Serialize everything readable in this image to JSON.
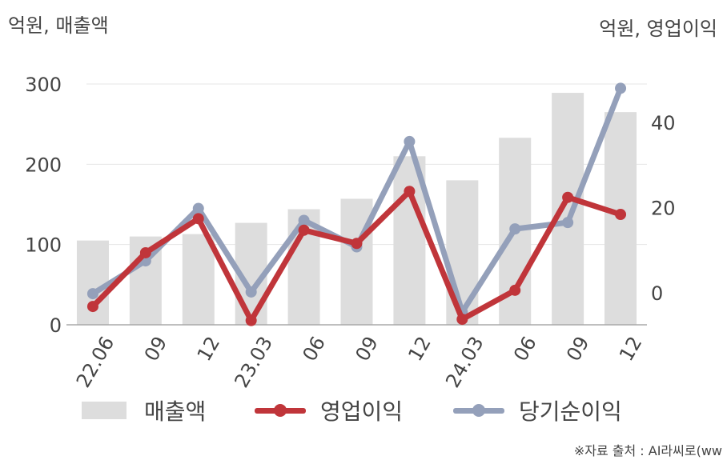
{
  "header": {
    "left_unit": "억원, 매출액",
    "right_unit": "억원, 영업이익"
  },
  "colors": {
    "revenue": "#dddddd",
    "operating_profit": "#c0353a",
    "net_profit": "#94a0ba",
    "gridline": "#e6e6e6",
    "axis": "#aaaaaa",
    "text": "#444444"
  },
  "chart_data": {
    "type": "bar",
    "categories": [
      "22.06",
      "09",
      "12",
      "23.03",
      "06",
      "09",
      "12",
      "24.03",
      "06",
      "09",
      "12"
    ],
    "left_axis": {
      "ylim": [
        0,
        300
      ],
      "ticks": [
        "0",
        "100",
        "200",
        "300"
      ]
    },
    "right_axis": {
      "ylim": [
        -7.5,
        49
      ],
      "ticks": [
        "0",
        "20",
        "40"
      ]
    },
    "series": [
      {
        "name": "매출액",
        "type": "bar",
        "axis": "left",
        "values": [
          105,
          110,
          113,
          127,
          144,
          157,
          210,
          180,
          233,
          289,
          265
        ]
      },
      {
        "name": "영업이익",
        "type": "line",
        "axis": "right",
        "values": [
          -3.2,
          9.4,
          17.4,
          -6.5,
          14.7,
          11.6,
          23.8,
          -6.2,
          0.6,
          22.4,
          18.4
        ]
      },
      {
        "name": "당기순이익",
        "type": "line",
        "axis": "right",
        "values": [
          -0.2,
          7.5,
          19.8,
          0.2,
          17.0,
          10.8,
          35.5,
          -4.5,
          15.0,
          16.5,
          48.0
        ]
      }
    ]
  },
  "legend": {
    "revenue": "매출액",
    "operating_profit": "영업이익",
    "net_profit": "당기순이익"
  },
  "footer": {
    "source": "※자료 출처 : AI라씨로(ww"
  }
}
